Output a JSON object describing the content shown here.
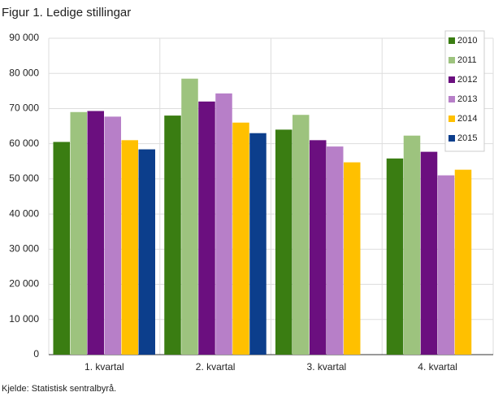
{
  "chart_data": {
    "type": "bar",
    "title": "Figur 1. Ledige stillingar",
    "source": "Kjelde: Statistisk sentralbyrå.",
    "categories": [
      "1. kvartal",
      "2. kvartal",
      "3. kvartal",
      "4. kvartal"
    ],
    "series": [
      {
        "name": "2010",
        "color": "#3a7d12",
        "values": [
          60500,
          68000,
          64000,
          55800
        ]
      },
      {
        "name": "2011",
        "color": "#9dc37e",
        "values": [
          69000,
          78500,
          68200,
          62300
        ]
      },
      {
        "name": "2012",
        "color": "#6b0f7f",
        "values": [
          69300,
          72000,
          61000,
          57700
        ]
      },
      {
        "name": "2013",
        "color": "#b77fc8",
        "values": [
          67700,
          74300,
          59200,
          51000
        ]
      },
      {
        "name": "2014",
        "color": "#ffc000",
        "values": [
          61000,
          66000,
          54700,
          52600
        ]
      },
      {
        "name": "2015",
        "color": "#0c3e8c",
        "values": [
          58400,
          63000,
          null,
          null
        ]
      }
    ],
    "ylim": [
      0,
      90000
    ],
    "yticks": [
      0,
      {
        "value": 10000,
        "label": "10 000"
      },
      {
        "value": 20000,
        "label": "20 000"
      },
      {
        "value": 30000,
        "label": "30 000"
      },
      {
        "value": 40000,
        "label": "40 000"
      },
      {
        "value": 50000,
        "label": "50 000"
      },
      {
        "value": 60000,
        "label": "60 000"
      },
      {
        "value": 70000,
        "label": "70 000"
      },
      {
        "value": 80000,
        "label": "80 000"
      },
      {
        "value": 90000,
        "label": "90 000"
      }
    ],
    "grid": true,
    "legend": "upper right"
  }
}
